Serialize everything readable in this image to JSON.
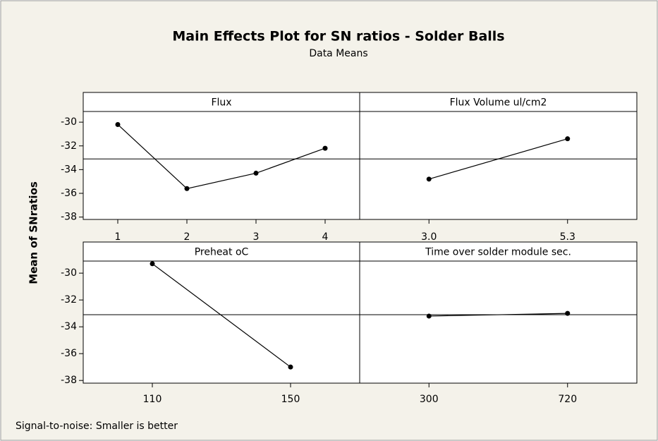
{
  "chart_data": {
    "type": "line",
    "title": "Main Effects Plot for SN ratios - Solder Balls",
    "subtitle": "Data Means",
    "ylabel": "Mean of SNratios",
    "footnote": "Signal-to-noise: Smaller is better",
    "ylim": [
      -38.2,
      -29.1
    ],
    "yticks": [
      -30,
      -32,
      -34,
      -36,
      -38
    ],
    "mean_line": -33.1,
    "color": "#000000",
    "panels": [
      {
        "title": "Flux",
        "categories": [
          "1",
          "2",
          "3",
          "4"
        ],
        "values": [
          -30.2,
          -35.6,
          -34.3,
          -32.2
        ]
      },
      {
        "title": "Flux Volume ul/cm2",
        "categories": [
          "3.0",
          "5.3"
        ],
        "values": [
          -34.8,
          -31.4
        ]
      },
      {
        "title": "Preheat oC",
        "categories": [
          "110",
          "150"
        ],
        "values": [
          -29.3,
          -37.0
        ]
      },
      {
        "title": "Time over solder module sec.",
        "categories": [
          "300",
          "720"
        ],
        "values": [
          -33.2,
          -33.0
        ]
      }
    ]
  }
}
